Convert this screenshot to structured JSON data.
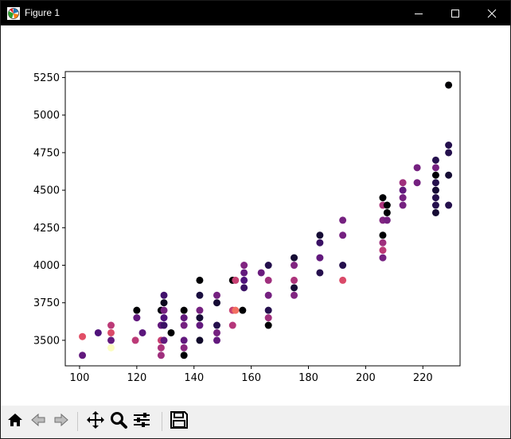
{
  "window": {
    "title": "Figure 1",
    "controls": {
      "minimize": "minimize-icon",
      "maximize": "maximize-icon",
      "close": "close-icon"
    }
  },
  "toolbar": {
    "buttons": [
      {
        "id": "home",
        "icon": "home-icon"
      },
      {
        "id": "back",
        "icon": "arrow-left-icon"
      },
      {
        "id": "forward",
        "icon": "arrow-right-icon"
      },
      {
        "id": "pan",
        "icon": "move-icon"
      },
      {
        "id": "zoom",
        "icon": "magnifier-icon"
      },
      {
        "id": "configure",
        "icon": "sliders-icon"
      },
      {
        "id": "save",
        "icon": "floppy-icon"
      }
    ]
  },
  "chart_data": {
    "type": "scatter",
    "title": "",
    "xlabel": "",
    "ylabel": "",
    "xlim": [
      95,
      233
    ],
    "ylim": [
      3330,
      5290
    ],
    "xticks": [
      100,
      120,
      140,
      160,
      180,
      200,
      220
    ],
    "yticks": [
      3500,
      3750,
      4000,
      4250,
      4500,
      4750,
      5000,
      5250
    ],
    "grid": false,
    "colormap": "magma",
    "points": [
      {
        "x": 101,
        "y": 3400,
        "c": 0.3
      },
      {
        "x": 101,
        "y": 3525,
        "c": 0.62
      },
      {
        "x": 106.5,
        "y": 3550,
        "c": 0.25
      },
      {
        "x": 111,
        "y": 3450,
        "c": 1.0
      },
      {
        "x": 111,
        "y": 3500,
        "c": 0.3
      },
      {
        "x": 111,
        "y": 3550,
        "c": 0.6
      },
      {
        "x": 111,
        "y": 3600,
        "c": 0.52
      },
      {
        "x": 119.5,
        "y": 3500,
        "c": 0.52
      },
      {
        "x": 120,
        "y": 3650,
        "c": 0.3
      },
      {
        "x": 120,
        "y": 3700,
        "c": 0.0
      },
      {
        "x": 122,
        "y": 3550,
        "c": 0.28
      },
      {
        "x": 128.5,
        "y": 3400,
        "c": 0.45
      },
      {
        "x": 128.5,
        "y": 3450,
        "c": 0.48
      },
      {
        "x": 128.5,
        "y": 3500,
        "c": 0.55
      },
      {
        "x": 128.5,
        "y": 3600,
        "c": 0.3
      },
      {
        "x": 128.5,
        "y": 3700,
        "c": 0.02
      },
      {
        "x": 129.5,
        "y": 3500,
        "c": 0.3
      },
      {
        "x": 129.5,
        "y": 3600,
        "c": 0.2
      },
      {
        "x": 129.5,
        "y": 3650,
        "c": 0.25
      },
      {
        "x": 129.5,
        "y": 3700,
        "c": 0.35
      },
      {
        "x": 129.5,
        "y": 3750,
        "c": 0.05
      },
      {
        "x": 129.5,
        "y": 3800,
        "c": 0.22
      },
      {
        "x": 132,
        "y": 3550,
        "c": 0.0
      },
      {
        "x": 136.5,
        "y": 3400,
        "c": 0.0
      },
      {
        "x": 136.5,
        "y": 3450,
        "c": 0.4
      },
      {
        "x": 136.5,
        "y": 3500,
        "c": 0.3
      },
      {
        "x": 136.5,
        "y": 3600,
        "c": 0.35
      },
      {
        "x": 136.5,
        "y": 3650,
        "c": 0.3
      },
      {
        "x": 136.5,
        "y": 3700,
        "c": 0.0
      },
      {
        "x": 142,
        "y": 3500,
        "c": 0.08
      },
      {
        "x": 142,
        "y": 3600,
        "c": 0.3
      },
      {
        "x": 142,
        "y": 3650,
        "c": 0.1
      },
      {
        "x": 142,
        "y": 3700,
        "c": 0.35
      },
      {
        "x": 142,
        "y": 3800,
        "c": 0.12
      },
      {
        "x": 142,
        "y": 3900,
        "c": 0.0
      },
      {
        "x": 148,
        "y": 3500,
        "c": 0.3
      },
      {
        "x": 148,
        "y": 3550,
        "c": 0.35
      },
      {
        "x": 148,
        "y": 3600,
        "c": 0.15
      },
      {
        "x": 148,
        "y": 3750,
        "c": 0.1
      },
      {
        "x": 148,
        "y": 3800,
        "c": 0.35
      },
      {
        "x": 153.5,
        "y": 3600,
        "c": 0.5
      },
      {
        "x": 153.5,
        "y": 3700,
        "c": 0.55
      },
      {
        "x": 153.5,
        "y": 3900,
        "c": 0.0
      },
      {
        "x": 154.5,
        "y": 3700,
        "c": 0.7
      },
      {
        "x": 154.5,
        "y": 3900,
        "c": 0.55
      },
      {
        "x": 157,
        "y": 3700,
        "c": 0.0
      },
      {
        "x": 157.5,
        "y": 3850,
        "c": 0.2
      },
      {
        "x": 157.5,
        "y": 3900,
        "c": 0.25
      },
      {
        "x": 157.5,
        "y": 3950,
        "c": 0.3
      },
      {
        "x": 157.5,
        "y": 4000,
        "c": 0.38
      },
      {
        "x": 163.5,
        "y": 3950,
        "c": 0.32
      },
      {
        "x": 166,
        "y": 3600,
        "c": 0.0
      },
      {
        "x": 166,
        "y": 3650,
        "c": 0.45
      },
      {
        "x": 166,
        "y": 3700,
        "c": 0.15
      },
      {
        "x": 166,
        "y": 3800,
        "c": 0.35
      },
      {
        "x": 166,
        "y": 3900,
        "c": 0.45
      },
      {
        "x": 166,
        "y": 4000,
        "c": 0.15
      },
      {
        "x": 175,
        "y": 3800,
        "c": 0.38
      },
      {
        "x": 175,
        "y": 3850,
        "c": 0.1
      },
      {
        "x": 175,
        "y": 3900,
        "c": 0.48
      },
      {
        "x": 175,
        "y": 4000,
        "c": 0.38
      },
      {
        "x": 175,
        "y": 4050,
        "c": 0.1
      },
      {
        "x": 184,
        "y": 3950,
        "c": 0.15
      },
      {
        "x": 184,
        "y": 4050,
        "c": 0.3
      },
      {
        "x": 184,
        "y": 4150,
        "c": 0.2
      },
      {
        "x": 184,
        "y": 4200,
        "c": 0.1
      },
      {
        "x": 192,
        "y": 3900,
        "c": 0.6
      },
      {
        "x": 192,
        "y": 4000,
        "c": 0.15
      },
      {
        "x": 192,
        "y": 4200,
        "c": 0.35
      },
      {
        "x": 192,
        "y": 4300,
        "c": 0.35
      },
      {
        "x": 206,
        "y": 4050,
        "c": 0.35
      },
      {
        "x": 206,
        "y": 4100,
        "c": 0.52
      },
      {
        "x": 206,
        "y": 4150,
        "c": 0.45
      },
      {
        "x": 206,
        "y": 4200,
        "c": 0.0
      },
      {
        "x": 206,
        "y": 4300,
        "c": 0.38
      },
      {
        "x": 206,
        "y": 4400,
        "c": 0.48
      },
      {
        "x": 206,
        "y": 4450,
        "c": 0.0
      },
      {
        "x": 207.5,
        "y": 4300,
        "c": 0.35
      },
      {
        "x": 207.5,
        "y": 4350,
        "c": 0.0
      },
      {
        "x": 207.5,
        "y": 4400,
        "c": 0.0
      },
      {
        "x": 213,
        "y": 4400,
        "c": 0.35
      },
      {
        "x": 213,
        "y": 4450,
        "c": 0.35
      },
      {
        "x": 213,
        "y": 4500,
        "c": 0.3
      },
      {
        "x": 213,
        "y": 4550,
        "c": 0.45
      },
      {
        "x": 218,
        "y": 4550,
        "c": 0.35
      },
      {
        "x": 218,
        "y": 4650,
        "c": 0.35
      },
      {
        "x": 224.5,
        "y": 4350,
        "c": 0.1
      },
      {
        "x": 224.5,
        "y": 4400,
        "c": 0.15
      },
      {
        "x": 224.5,
        "y": 4450,
        "c": 0.15
      },
      {
        "x": 224.5,
        "y": 4500,
        "c": 0.1
      },
      {
        "x": 224.5,
        "y": 4550,
        "c": 0.15
      },
      {
        "x": 224.5,
        "y": 4600,
        "c": 0.0
      },
      {
        "x": 224.5,
        "y": 4650,
        "c": 0.35
      },
      {
        "x": 224.5,
        "y": 4700,
        "c": 0.15
      },
      {
        "x": 229,
        "y": 4400,
        "c": 0.15
      },
      {
        "x": 229,
        "y": 4600,
        "c": 0.1
      },
      {
        "x": 229,
        "y": 4750,
        "c": 0.15
      },
      {
        "x": 229,
        "y": 4800,
        "c": 0.15
      },
      {
        "x": 229,
        "y": 5200,
        "c": 0.0
      }
    ]
  }
}
